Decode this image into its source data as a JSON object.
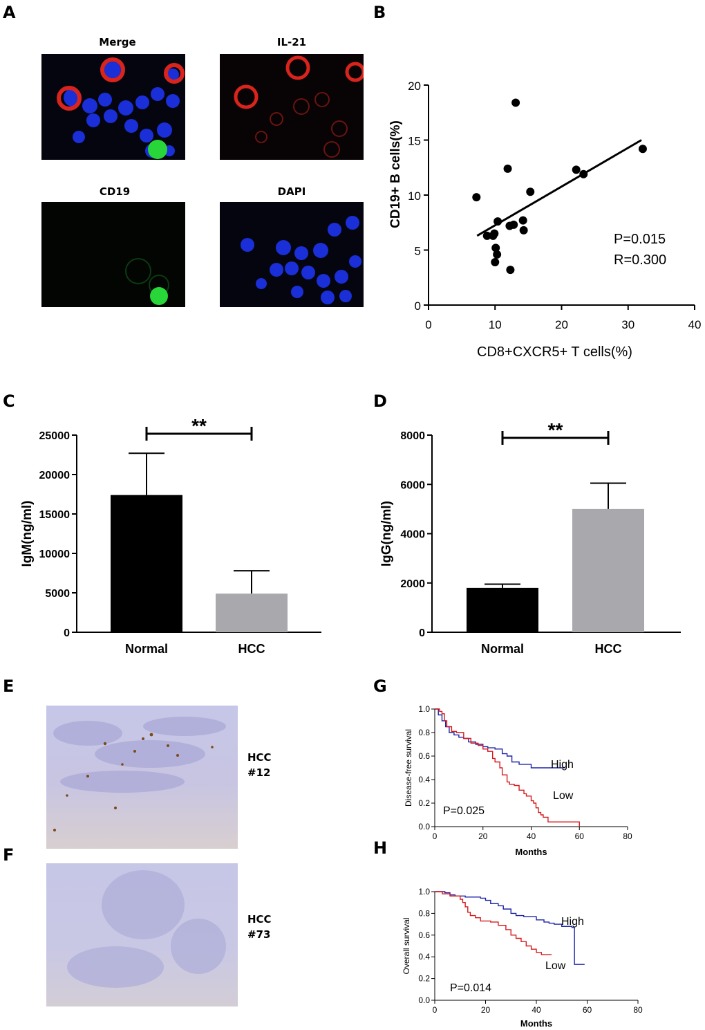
{
  "panels": {
    "A": "A",
    "B": "B",
    "C": "C",
    "D": "D",
    "E": "E",
    "F": "F",
    "G": "G",
    "H": "H"
  },
  "panel_a": {
    "titles": [
      "Merge",
      "IL-21",
      "CD19",
      "DAPI"
    ]
  },
  "panel_e": {
    "line1": "HCC",
    "line2": "#12"
  },
  "panel_f": {
    "line1": "HCC",
    "line2": "#73"
  },
  "colors": {
    "dapi": "#1a2fd8",
    "il21": "#d8241c",
    "cd19": "#29d63a",
    "bar_normal": "#000000",
    "bar_hcc": "#a9a9ad",
    "high": "#1c23a8",
    "low": "#d7191c",
    "ihc_bg": "#c9c8e6",
    "ihc_stain": "#7a4a1c"
  },
  "chart_data": [
    {
      "panel": "B",
      "type": "scatter",
      "xlabel": "CD8+CXCR5+ T cells(%)",
      "ylabel": "CD19+ B cells(%)",
      "xlim": [
        0,
        40
      ],
      "ylim": [
        0,
        20
      ],
      "xticks": [
        "0",
        "10",
        "20",
        "30",
        "40"
      ],
      "yticks": [
        "0",
        "5",
        "10",
        "15",
        "20"
      ],
      "points": [
        {
          "x": 7.2,
          "y": 9.8
        },
        {
          "x": 8.8,
          "y": 6.3
        },
        {
          "x": 9.7,
          "y": 6.3
        },
        {
          "x": 9.9,
          "y": 6.5
        },
        {
          "x": 10.1,
          "y": 5.2
        },
        {
          "x": 10.3,
          "y": 4.6
        },
        {
          "x": 10.0,
          "y": 3.9
        },
        {
          "x": 10.4,
          "y": 7.6
        },
        {
          "x": 11.9,
          "y": 12.4
        },
        {
          "x": 12.2,
          "y": 7.2
        },
        {
          "x": 12.8,
          "y": 7.3
        },
        {
          "x": 12.3,
          "y": 3.2
        },
        {
          "x": 13.1,
          "y": 18.4
        },
        {
          "x": 14.2,
          "y": 7.7
        },
        {
          "x": 14.3,
          "y": 6.8
        },
        {
          "x": 15.3,
          "y": 10.3
        },
        {
          "x": 22.2,
          "y": 12.3
        },
        {
          "x": 23.3,
          "y": 11.9
        },
        {
          "x": 32.2,
          "y": 14.2
        }
      ],
      "fit": {
        "x": [
          7.3,
          32.0
        ],
        "y": [
          6.3,
          15.0
        ]
      },
      "annotations": [
        "P=0.015",
        "R=0.300"
      ]
    },
    {
      "panel": "C",
      "type": "bar",
      "ylabel": "IgM(ng/ml)",
      "categories": [
        "Normal",
        "HCC"
      ],
      "values": [
        17400,
        4900
      ],
      "errors": [
        5300,
        2900
      ],
      "ylim": [
        0,
        25000
      ],
      "yticks": [
        "0",
        "5000",
        "10000",
        "15000",
        "20000",
        "25000"
      ],
      "significance": "**"
    },
    {
      "panel": "D",
      "type": "bar",
      "ylabel": "IgG(ng/ml)",
      "categories": [
        "Normal",
        "HCC"
      ],
      "values": [
        1800,
        5000
      ],
      "errors": [
        150,
        1050
      ],
      "ylim": [
        0,
        8000
      ],
      "yticks": [
        "0",
        "2000",
        "4000",
        "6000",
        "8000"
      ],
      "significance": "**"
    },
    {
      "panel": "G",
      "type": "line",
      "xlabel": "Months",
      "ylabel": "Disease-free survival",
      "xlim": [
        0,
        80
      ],
      "ylim": [
        0,
        1.0
      ],
      "xticks": [
        "0",
        "20",
        "40",
        "60",
        "80"
      ],
      "yticks": [
        "0.0",
        "0.2",
        "0.4",
        "0.6",
        "0.8",
        "1.0"
      ],
      "pvalue": "P=0.025",
      "series": [
        {
          "name": "High",
          "x": [
            0,
            1.5,
            3,
            4.5,
            6,
            8,
            10,
            12,
            14,
            17,
            20,
            22,
            25,
            28,
            30,
            32,
            35,
            38,
            40,
            42,
            44,
            46,
            48,
            50,
            54
          ],
          "y": [
            1.0,
            0.95,
            0.9,
            0.85,
            0.8,
            0.78,
            0.76,
            0.75,
            0.72,
            0.7,
            0.68,
            0.67,
            0.66,
            0.62,
            0.6,
            0.55,
            0.53,
            0.53,
            0.5,
            0.5,
            0.5,
            0.5,
            0.5,
            0.5,
            0.5
          ]
        },
        {
          "name": "Low",
          "x": [
            0,
            2,
            3,
            4,
            5,
            7,
            9,
            12,
            15,
            18,
            20,
            22,
            24,
            25,
            27,
            28,
            30,
            31,
            33,
            35,
            37,
            38,
            40,
            41,
            42,
            43,
            44,
            45,
            47,
            48,
            52,
            60
          ],
          "y": [
            1.0,
            0.98,
            0.96,
            0.9,
            0.85,
            0.81,
            0.8,
            0.75,
            0.71,
            0.69,
            0.66,
            0.64,
            0.58,
            0.55,
            0.5,
            0.44,
            0.38,
            0.36,
            0.35,
            0.31,
            0.28,
            0.26,
            0.22,
            0.2,
            0.16,
            0.12,
            0.1,
            0.08,
            0.04,
            0.04,
            0.04,
            0.0
          ]
        }
      ]
    },
    {
      "panel": "H",
      "type": "line",
      "xlabel": "Months",
      "ylabel": "Overall survival",
      "xlim": [
        0,
        80
      ],
      "ylim": [
        0,
        1.0
      ],
      "xticks": [
        "0",
        "20",
        "40",
        "60",
        "80"
      ],
      "yticks": [
        "0.0",
        "0.2",
        "0.4",
        "0.6",
        "0.8",
        "1.0"
      ],
      "pvalue": "P=0.014",
      "series": [
        {
          "name": "High",
          "x": [
            0,
            4,
            6,
            8,
            12,
            18,
            20,
            22,
            25,
            27,
            30,
            32,
            35,
            38,
            40,
            43,
            45,
            47,
            50,
            54,
            55,
            59
          ],
          "y": [
            1.0,
            0.99,
            0.97,
            0.96,
            0.95,
            0.94,
            0.92,
            0.89,
            0.87,
            0.84,
            0.8,
            0.78,
            0.77,
            0.77,
            0.74,
            0.72,
            0.71,
            0.7,
            0.68,
            0.67,
            0.33,
            0.33
          ]
        },
        {
          "name": "Low",
          "x": [
            0,
            3,
            6,
            10,
            11,
            12,
            13,
            14,
            16,
            18,
            22,
            25,
            28,
            30,
            32,
            34,
            36,
            38,
            40,
            42,
            46
          ],
          "y": [
            1.0,
            0.98,
            0.96,
            0.93,
            0.9,
            0.86,
            0.81,
            0.78,
            0.76,
            0.73,
            0.72,
            0.69,
            0.65,
            0.6,
            0.57,
            0.54,
            0.5,
            0.47,
            0.44,
            0.42,
            0.42
          ]
        }
      ]
    }
  ]
}
